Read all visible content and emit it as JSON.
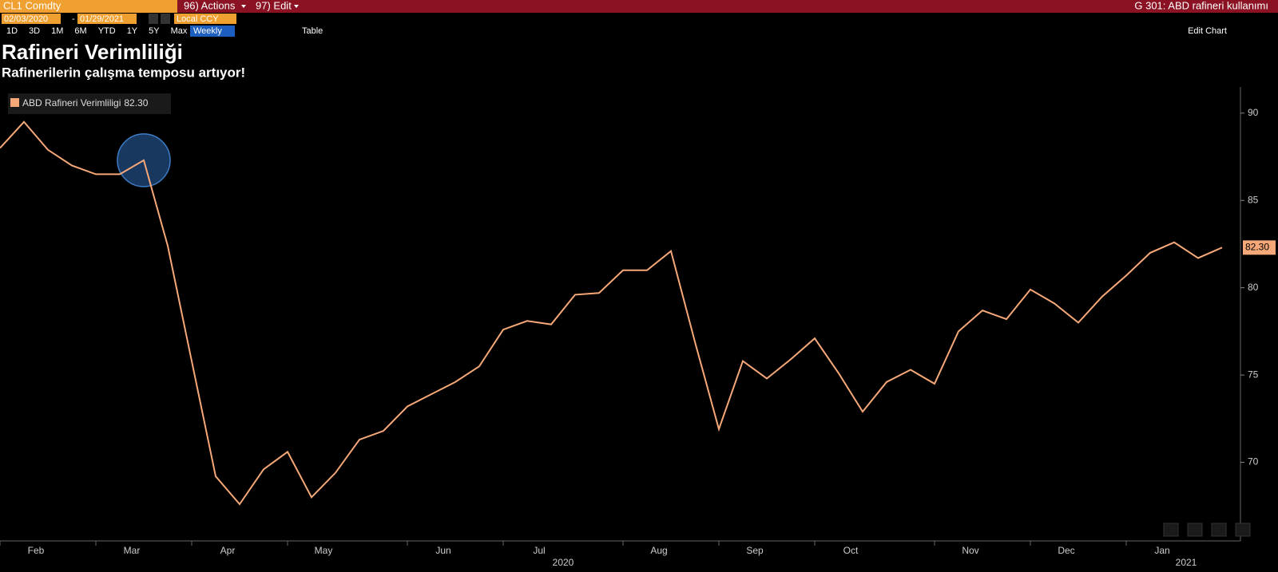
{
  "ui": {
    "security": "CL1 Comdty",
    "actions": "96) Actions",
    "edit": "97) Edit",
    "page_title": "G 301: ABD rafineri kullanımı",
    "start_date": "02/03/2020",
    "date_separator": "-",
    "end_date": "01/29/2021",
    "currency": "Local CCY",
    "periods": [
      "1D",
      "3D",
      "1M",
      "6M",
      "YTD",
      "1Y",
      "5Y",
      "Max"
    ],
    "frequency": "Weekly",
    "table": "Table",
    "edit_chart": "Edit Chart"
  },
  "chart_data": {
    "type": "line",
    "title": "Rafineri Verimliliği",
    "subtitle": "Rafinerilerin çalışma temposu artıyor!",
    "categories": [
      null,
      "Feb",
      null,
      null,
      null,
      "Mar",
      null,
      null,
      null,
      "Apr",
      null,
      null,
      null,
      "May",
      null,
      null,
      null,
      null,
      "Jun",
      null,
      null,
      null,
      "Jul",
      null,
      null,
      null,
      null,
      "Aug",
      null,
      null,
      null,
      "Sep",
      null,
      null,
      null,
      "Oct",
      null,
      null,
      null,
      null,
      "Nov",
      null,
      null,
      null,
      "Dec",
      null,
      null,
      null,
      "Jan",
      null,
      null,
      null
    ],
    "years": [
      null,
      null,
      null,
      null,
      null,
      null,
      null,
      null,
      null,
      null,
      null,
      null,
      null,
      null,
      null,
      null,
      null,
      null,
      null,
      null,
      null,
      null,
      null,
      "2020",
      null,
      null,
      null,
      null,
      null,
      null,
      null,
      null,
      null,
      null,
      null,
      null,
      null,
      null,
      null,
      null,
      null,
      null,
      null,
      null,
      null,
      null,
      null,
      null,
      null,
      "2021",
      null,
      null
    ],
    "series": [
      {
        "name": "ABD Rafineri Verimliligi",
        "color": "#f6a878",
        "values": [
          88.0,
          89.5,
          87.9,
          87.0,
          86.5,
          86.5,
          87.3,
          82.4,
          75.8,
          69.2,
          67.6,
          69.6,
          70.6,
          68.0,
          69.4,
          71.3,
          71.8,
          73.2,
          73.9,
          74.6,
          75.5,
          77.6,
          78.1,
          77.9,
          79.6,
          79.7,
          81.0,
          81.0,
          82.1,
          76.9,
          71.9,
          75.8,
          74.8,
          75.9,
          77.1,
          75.1,
          72.9,
          74.6,
          75.3,
          74.5,
          77.5,
          78.7,
          78.2,
          79.9,
          79.1,
          78.0,
          79.5,
          80.7,
          82.0,
          82.6,
          81.7,
          82.3
        ],
        "value_labels": [
          null,
          null,
          null,
          null,
          null,
          null,
          null,
          null,
          null,
          null,
          null,
          null,
          null,
          null,
          null,
          null,
          null,
          null,
          null,
          null,
          null,
          null,
          null,
          null,
          null,
          null,
          null,
          null,
          null,
          null,
          null,
          null,
          null,
          null,
          null,
          null,
          null,
          null,
          null,
          null,
          null,
          null,
          null,
          null,
          null,
          null,
          null,
          null,
          null,
          null,
          null,
          "82.30"
        ]
      }
    ],
    "ylim": [
      65.5,
      91.5
    ],
    "yticks": [
      70,
      75,
      80,
      85,
      90
    ],
    "grid": false,
    "legend": "top-left"
  }
}
